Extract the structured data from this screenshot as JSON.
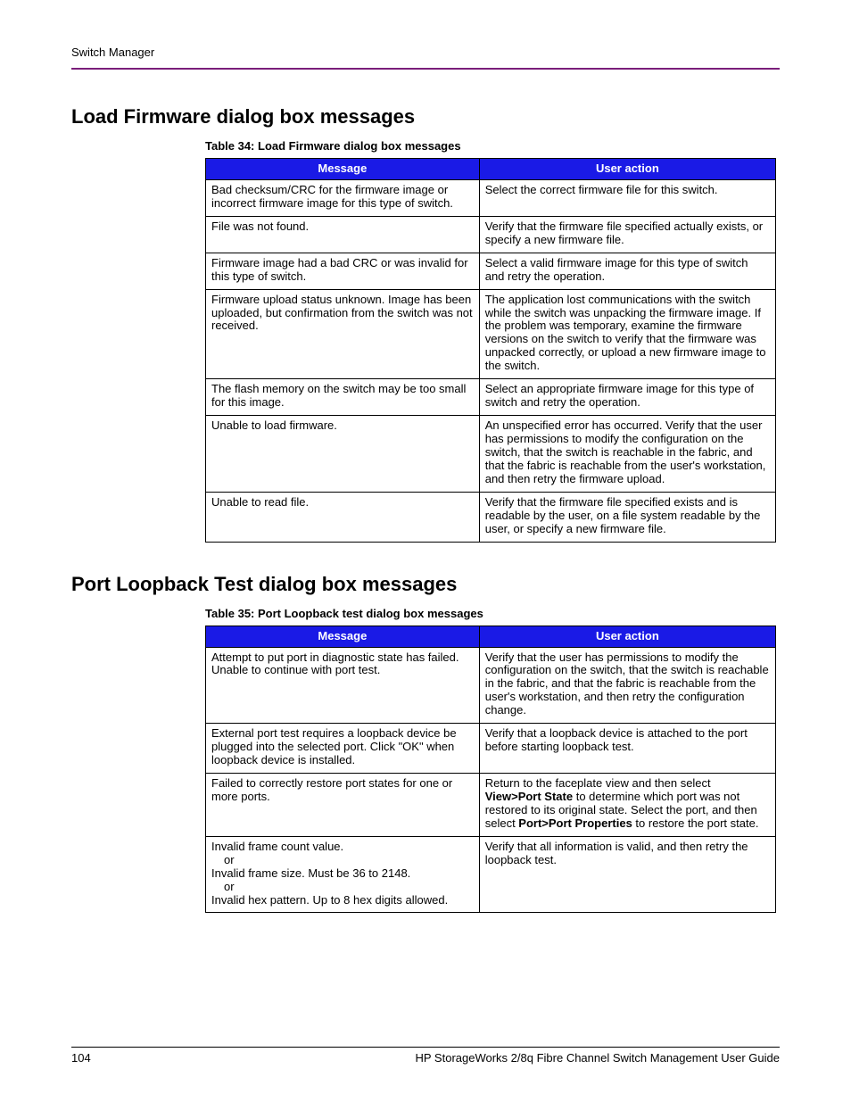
{
  "header": {
    "title": "Switch Manager"
  },
  "colors": {
    "header_rule": "#7a1e7a",
    "table_header_bg": "#1a1ae6",
    "table_header_fg": "#ffffff",
    "border": "#000000",
    "text": "#000000",
    "background": "#ffffff"
  },
  "typography": {
    "body_font": "Helvetica Neue, Arial, sans-serif",
    "h2_size_pt": 16,
    "caption_size_pt": 10,
    "table_size_pt": 10,
    "footer_size_pt": 10
  },
  "sections": {
    "s1": {
      "heading": "Load Firmware dialog box messages",
      "caption": "Table 34:  Load Firmware dialog box messages",
      "columns": {
        "c1": "Message",
        "c2": "User action"
      },
      "rows": {
        "r1": {
          "msg": "Bad checksum/CRC for the firmware image or incorrect firmware image for this type of switch.",
          "act": "Select the correct firmware file for this switch."
        },
        "r2": {
          "msg": "File was not found.",
          "act": "Verify that the firmware file specified actually exists, or specify a new firmware file."
        },
        "r3": {
          "msg": "Firmware image had a bad CRC or was invalid for this type of switch.",
          "act": "Select a valid firmware image for this type of switch and retry the operation."
        },
        "r4": {
          "msg": "Firmware upload status unknown. Image has been uploaded, but confirmation from the switch was not received.",
          "act": "The application lost communications with the switch while the switch was unpacking the firmware image. If the problem was temporary, examine the firmware versions on the switch to verify that the firmware was unpacked correctly, or upload a new firmware image to the switch."
        },
        "r5": {
          "msg": "The flash memory on the switch may be too small for this image.",
          "act": "Select an appropriate firmware image for this type of switch and retry the operation."
        },
        "r6": {
          "msg": "Unable to load firmware.",
          "act": "An unspecified error has occurred. Verify that the user has permissions to modify the configuration on the switch, that the switch is reachable in the fabric, and that the fabric is reachable from the user's workstation, and then retry the firmware upload."
        },
        "r7": {
          "msg": "Unable to read file.",
          "act": "Verify that the firmware file specified exists and is readable by the user, on a file system readable by the user, or specify a new firmware file."
        }
      }
    },
    "s2": {
      "heading": "Port Loopback Test dialog box messages",
      "caption": "Table 35:  Port Loopback test dialog box messages",
      "columns": {
        "c1": "Message",
        "c2": "User action"
      },
      "rows": {
        "r1": {
          "msg": "Attempt to put port in diagnostic state has failed. Unable to continue with port test.",
          "act": "Verify that the user has permissions to modify the configuration on the switch, that the switch is reachable in the fabric, and that the fabric is reachable from the user's workstation, and then retry the configuration change."
        },
        "r2": {
          "msg": "External port test requires a loopback device be plugged into the selected port. Click \"OK\" when loopback device is installed.",
          "act": "Verify that a loopback device is attached to the port before starting loopback test."
        },
        "r3": {
          "msg": "Failed to correctly restore port states for one or more ports.",
          "act_pre": "Return to the faceplate view and then select ",
          "act_b1": "View>Port State",
          "act_mid": " to determine which port was not restored to its original state. Select the port, and then select ",
          "act_b2": "Port>Port Properties",
          "act_post": " to restore the port state."
        },
        "r4": {
          "msg_l1": "Invalid frame count value.",
          "msg_or1": "or",
          "msg_l2": "Invalid frame size. Must be 36 to 2148.",
          "msg_or2": "or",
          "msg_l3": "Invalid hex pattern. Up to 8 hex digits allowed.",
          "act": "Verify that all information is valid, and then retry the loopback test."
        }
      }
    }
  },
  "footer": {
    "page": "104",
    "doc": "HP StorageWorks 2/8q Fibre Channel Switch Management User Guide"
  }
}
